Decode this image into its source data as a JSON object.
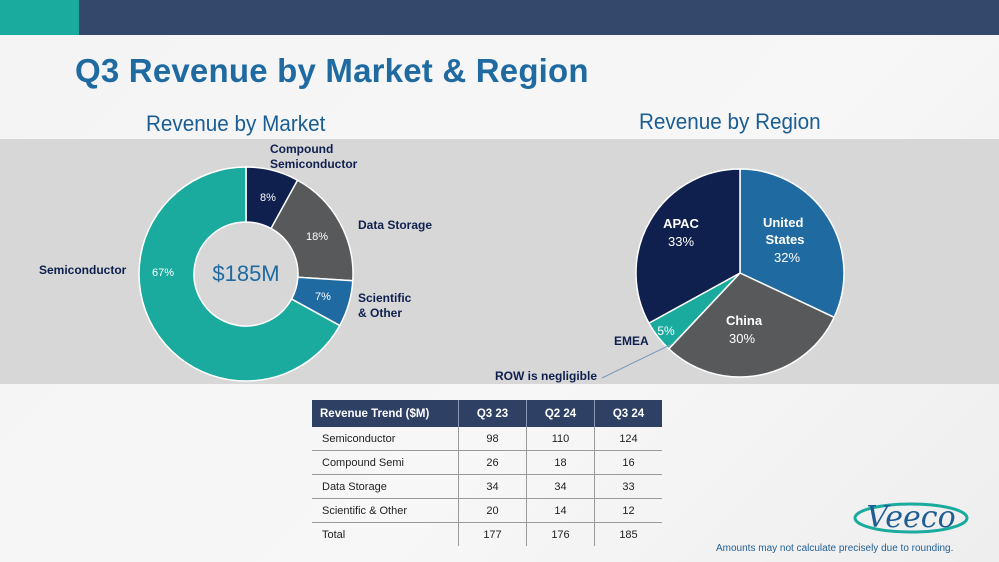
{
  "title": "Q3 Revenue by Market & Region",
  "colors": {
    "teal": "#1aab9e",
    "navy": "#0f1f4e",
    "dark_grey": "#58595b",
    "blue": "#1f6aa1",
    "title_blue": "#1f6aa1",
    "header_bar": "#34486b"
  },
  "market": {
    "title": "Revenue by Market",
    "center_label": "$185M"
  },
  "region": {
    "title": "Revenue by Region",
    "note": "ROW is negligible"
  },
  "chart_data": [
    {
      "type": "pie",
      "variant": "donut",
      "title": "Revenue by Market",
      "center_label": "$185M",
      "slices": [
        {
          "name": "Compound Semiconductor",
          "value": 8,
          "label": "8%",
          "color": "#0f1f4e"
        },
        {
          "name": "Data Storage",
          "value": 18,
          "label": "18%",
          "color": "#58595b"
        },
        {
          "name": "Scientific & Other",
          "value": 7,
          "label": "7%",
          "color": "#1f6aa1"
        },
        {
          "name": "Semiconductor",
          "value": 67,
          "label": "67%",
          "color": "#1aab9e"
        }
      ]
    },
    {
      "type": "pie",
      "title": "Revenue by Region",
      "slices": [
        {
          "name": "United States",
          "value": 32,
          "label": "32%",
          "color": "#1f6aa1"
        },
        {
          "name": "China",
          "value": 30,
          "label": "30%",
          "color": "#58595b"
        },
        {
          "name": "EMEA",
          "value": 5,
          "label": "5%",
          "color": "#1aab9e"
        },
        {
          "name": "APAC",
          "value": 33,
          "label": "33%",
          "color": "#0f1f4e"
        }
      ],
      "annotation": "ROW is negligible"
    },
    {
      "type": "table",
      "columns": [
        "Revenue Trend ($M)",
        "Q3 23",
        "Q2 24",
        "Q3 24"
      ],
      "rows": [
        [
          "Semiconductor",
          "98",
          "110",
          "124"
        ],
        [
          "Compound Semi",
          "26",
          "18",
          "16"
        ],
        [
          "Data Storage",
          "34",
          "34",
          "33"
        ],
        [
          "Scientific & Other",
          "20",
          "14",
          "12"
        ],
        [
          "Total",
          "177",
          "176",
          "185"
        ]
      ]
    }
  ],
  "logo_text": "Veeco",
  "footnote": "Amounts may not calculate precisely due to rounding."
}
